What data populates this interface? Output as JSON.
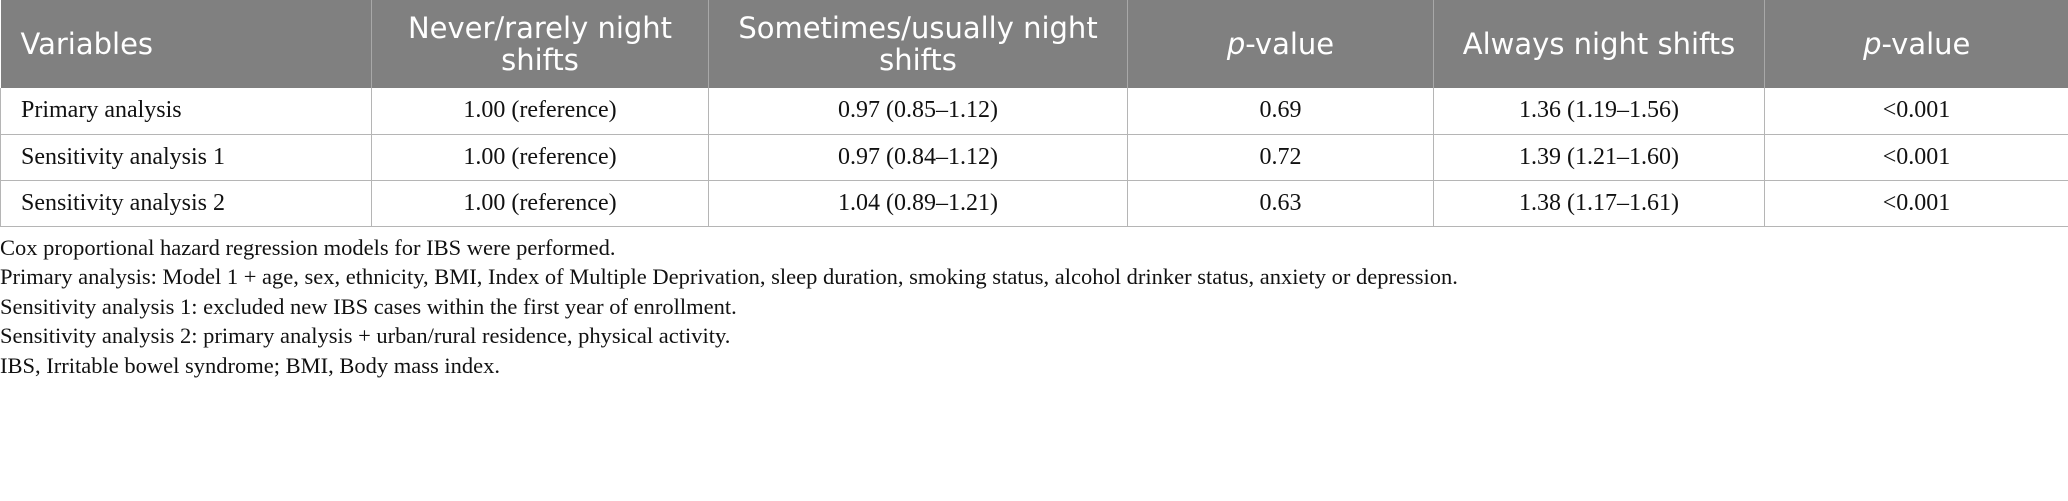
{
  "table": {
    "header": [
      "Variables",
      "Never/rarely night shifts",
      "Sometimes/usually night shifts",
      "p-value",
      "Always night shifts",
      "p-value"
    ],
    "rows": [
      [
        "Primary analysis",
        "1.00 (reference)",
        "0.97 (0.85–1.12)",
        "0.69",
        "1.36 (1.19–1.56)",
        "<0.001"
      ],
      [
        "Sensitivity analysis 1",
        "1.00 (reference)",
        "0.97 (0.84–1.12)",
        "0.72",
        "1.39 (1.21–1.60)",
        "<0.001"
      ],
      [
        "Sensitivity analysis 2",
        "1.00 (reference)",
        "1.04 (0.89–1.21)",
        "0.63",
        "1.38 (1.17–1.61)",
        "<0.001"
      ]
    ]
  },
  "footnotes": [
    "Cox proportional hazard regression models for IBS were performed.",
    "Primary analysis: Model 1 + age, sex, ethnicity, BMI, Index of Multiple Deprivation, sleep duration, smoking status, alcohol drinker status, anxiety or depression.",
    "Sensitivity analysis 1: excluded new IBS cases within the first year of enrollment.",
    "Sensitivity analysis 2: primary analysis + urban/rural residence, physical activity.",
    "IBS, Irritable bowel syndrome; BMI, Body mass index."
  ]
}
